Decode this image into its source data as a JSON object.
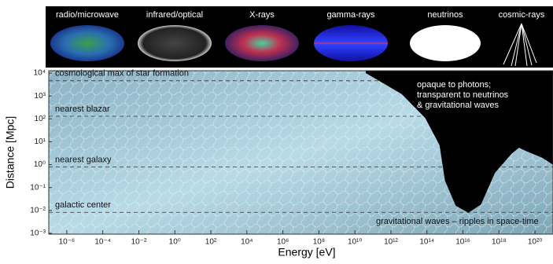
{
  "chart_data": {
    "type": "area",
    "panel_labels": [
      "radio/microwave",
      "infrared/optical",
      "X-rays",
      "gamma-rays",
      "neutrinos",
      "cosmic-rays"
    ],
    "xlabel": "Energy [eV]",
    "ylabel": "Distance [Mpc]",
    "xscale": "log",
    "yscale": "log",
    "xlim": [
      1e-07,
      1e+21
    ],
    "ylim": [
      0.001,
      10000
    ],
    "xticks": [
      {
        "value": 1e-06,
        "label": "10⁻⁶"
      },
      {
        "value": 0.0001,
        "label": "10⁻⁴"
      },
      {
        "value": 0.01,
        "label": "10⁻²"
      },
      {
        "value": 1,
        "label": "10⁰"
      },
      {
        "value": 100,
        "label": "10²"
      },
      {
        "value": 10000,
        "label": "10⁴"
      },
      {
        "value": 1000000.0,
        "label": "10⁶"
      },
      {
        "value": 100000000.0,
        "label": "10⁸"
      },
      {
        "value": 10000000000.0,
        "label": "10¹⁰"
      },
      {
        "value": 1000000000000.0,
        "label": "10¹²"
      },
      {
        "value": 100000000000000.0,
        "label": "10¹⁴"
      },
      {
        "value": 1e+16,
        "label": "10¹⁶"
      },
      {
        "value": 1e+18,
        "label": "10¹⁸"
      },
      {
        "value": 1e+20,
        "label": "10²⁰"
      }
    ],
    "yticks": [
      {
        "value": 10000,
        "label": "10⁴"
      },
      {
        "value": 1000,
        "label": "10³"
      },
      {
        "value": 100,
        "label": "10²"
      },
      {
        "value": 10,
        "label": "10¹"
      },
      {
        "value": 1,
        "label": "10⁰"
      },
      {
        "value": 0.1,
        "label": "10⁻¹"
      },
      {
        "value": 0.01,
        "label": "10⁻²"
      },
      {
        "value": 0.001,
        "label": "10⁻³"
      }
    ],
    "series": [
      {
        "color": "#000000",
        "x": [
          40000000000.0,
          4000000000000.0,
          80000000000000.0,
          500000000000000.0,
          1000000000000000.0,
          4000000000000000.0,
          2e+16,
          1e+17,
          6e+17,
          5e+18,
          1.3e+19,
          3e+19,
          2.5e+20,
          1e+21
        ],
        "values": [
          10000,
          1200,
          110,
          7,
          0.2,
          0.016,
          0.008,
          0.018,
          0.44,
          3,
          5.5,
          4,
          2,
          1
        ]
      }
    ],
    "reference_lines": [
      {
        "label": "cosmological max of star formation",
        "value": 4600
      },
      {
        "label": "nearest blazar",
        "value": 130
      },
      {
        "label": "nearest galaxy",
        "value": 0.8
      },
      {
        "label": "galactic center",
        "value": 0.0083
      }
    ],
    "annotations": {
      "opaque": [
        "opaque to photons;",
        "transparent to neutrinos",
        "& gravitational waves"
      ],
      "waves": "gravitational waves – ripples in space-time"
    },
    "grid": false
  }
}
